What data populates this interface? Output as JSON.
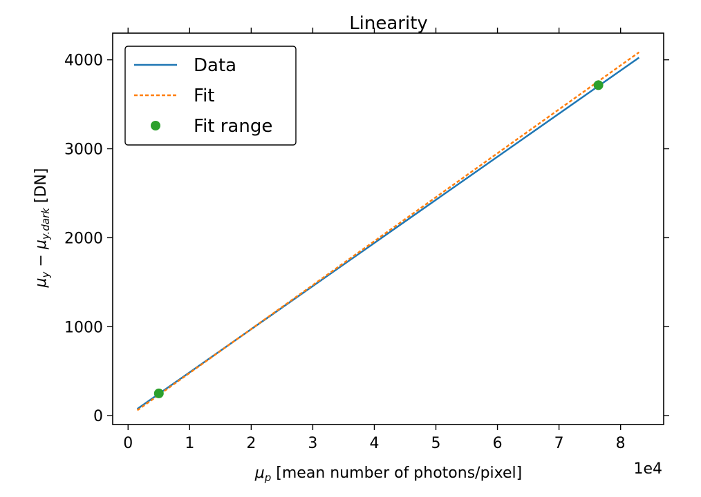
{
  "chart_data": {
    "type": "line",
    "title": "Linearity",
    "xlabel": {
      "symbol": "μ",
      "subscript": "p",
      "text": " [mean number of photons/pixel]"
    },
    "ylabel": {
      "symbol1": "μ",
      "sub1": "y",
      "minus": " − ",
      "symbol2": "μ",
      "sub2": "y.dark",
      "text": " [DN]"
    },
    "x_offset_label": "1e4",
    "xlim": [
      -0.25,
      8.7
    ],
    "ylim": [
      -100,
      4300
    ],
    "x_ticks": [
      0,
      1,
      2,
      3,
      4,
      5,
      6,
      7,
      8
    ],
    "x_tick_labels": [
      "0",
      "1",
      "2",
      "3",
      "4",
      "5",
      "6",
      "7",
      "8"
    ],
    "y_ticks": [
      0,
      1000,
      2000,
      3000,
      4000
    ],
    "y_tick_labels": [
      "0",
      "1000",
      "2000",
      "3000",
      "4000"
    ],
    "grid": false,
    "legend_position": "top-left",
    "series": [
      {
        "name": "Data",
        "style": "solid",
        "color": "#1f77b4",
        "x": [
          0.15,
          8.3
        ],
        "y": [
          75,
          4025
        ]
      },
      {
        "name": "Fit",
        "style": "dashed",
        "color": "#ff7f0e",
        "x": [
          0.15,
          8.3
        ],
        "y": [
          60,
          4085
        ]
      },
      {
        "name": "Fit range",
        "style": "marker",
        "color": "#2ca02c",
        "x": [
          0.5,
          7.64
        ],
        "y": [
          250,
          3715
        ]
      }
    ]
  }
}
